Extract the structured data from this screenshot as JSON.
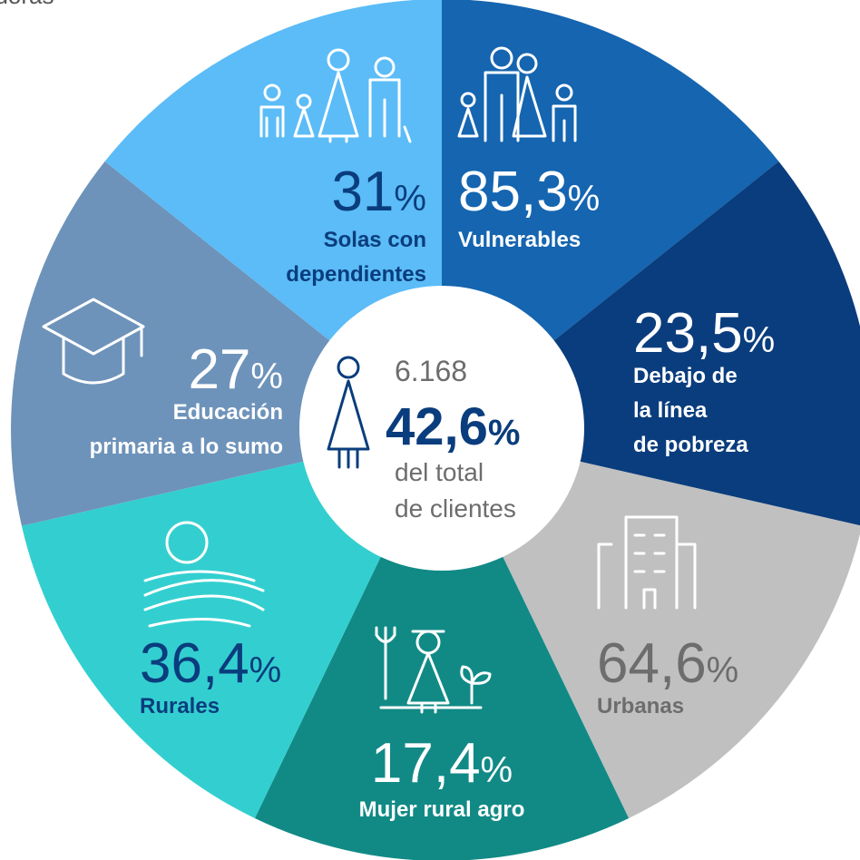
{
  "header": {
    "title": "adoras"
  },
  "segments": [
    {
      "value": "85,3",
      "unit": "%",
      "label": [
        "Vulnerables"
      ]
    },
    {
      "value": "23,5",
      "unit": "%",
      "label": [
        "Debajo de",
        "la línea",
        "de pobreza"
      ]
    },
    {
      "value": "64,6",
      "unit": "%",
      "label": [
        "Urbanas"
      ]
    },
    {
      "value": "17,4",
      "unit": "%",
      "label": [
        "Mujer rural agro"
      ]
    },
    {
      "value": "36,4",
      "unit": "%",
      "label": [
        "Rurales"
      ]
    },
    {
      "value": "27",
      "unit": "%",
      "label": [
        "Educación",
        "primaria a lo sumo"
      ]
    },
    {
      "value": "31",
      "unit": "%",
      "label": [
        "Solas con",
        "dependientes"
      ]
    }
  ],
  "center": {
    "count": "6.168",
    "value": "42,6",
    "unit": "%",
    "caption": [
      "del total",
      "de clientes"
    ]
  }
}
